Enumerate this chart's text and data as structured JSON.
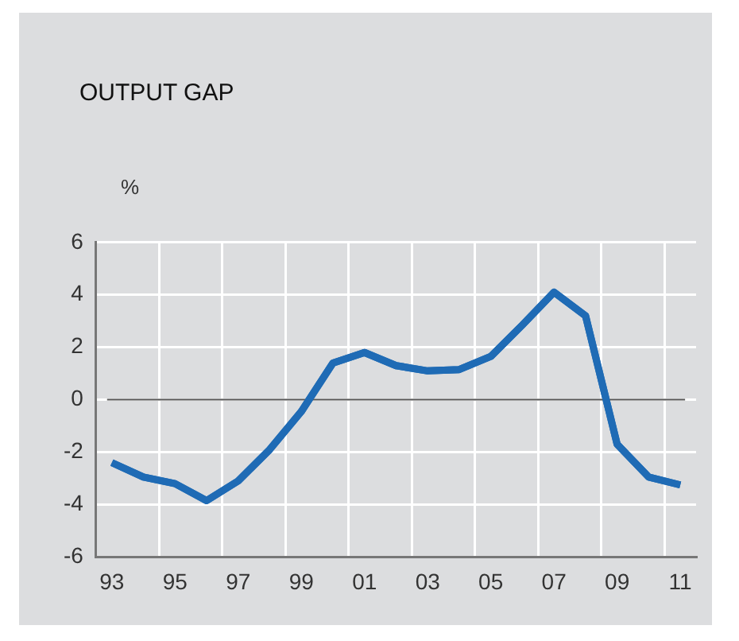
{
  "chart_data": {
    "type": "line",
    "title": "OUTPUT GAP",
    "ylabel": "%",
    "categories": [
      "93",
      null,
      "95",
      null,
      "97",
      null,
      "99",
      null,
      "01",
      null,
      "03",
      null,
      "05",
      null,
      "07",
      null,
      "09",
      null,
      "11"
    ],
    "series": [
      {
        "color": "#1f6bb5",
        "values": [
          -2.4,
          -2.95,
          -3.2,
          -3.85,
          -3.1,
          -1.9,
          -0.45,
          1.4,
          1.8,
          1.3,
          1.1,
          1.15,
          1.65,
          2.85,
          4.1,
          3.2,
          -1.7,
          -2.95,
          -3.25
        ]
      }
    ],
    "ylim": [
      -6,
      6
    ],
    "yticks": [
      -6,
      -4,
      -2,
      0,
      2,
      4,
      6
    ],
    "ref_lines": [
      {
        "axis": "y",
        "value": 0,
        "color": "#555555"
      }
    ],
    "grid": true,
    "legend": false,
    "marker": "none",
    "line_style": "solid"
  }
}
